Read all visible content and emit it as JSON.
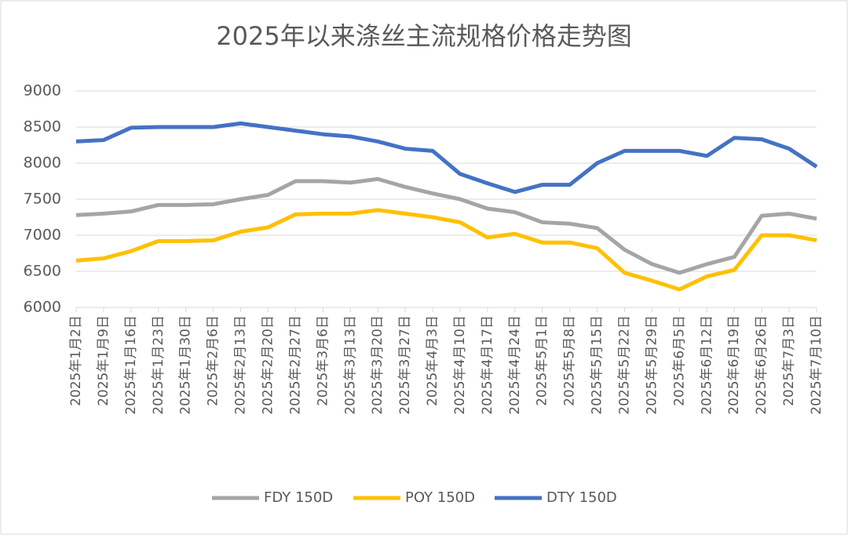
{
  "chart_data": {
    "type": "line",
    "title": "2025年以来涤丝主流规格价格走势图",
    "categories": [
      "2025年1月2日",
      "2025年1月9日",
      "2025年1月16日",
      "2025年1月23日",
      "2025年1月30日",
      "2025年2月6日",
      "2025年2月13日",
      "2025年2月20日",
      "2025年2月27日",
      "2025年3月6日",
      "2025年3月13日",
      "2025年3月20日",
      "2025年3月27日",
      "2025年4月3日",
      "2025年4月10日",
      "2025年4月17日",
      "2025年4月24日",
      "2025年5月1日",
      "2025年5月8日",
      "2025年5月15日",
      "2025年5月22日",
      "2025年5月29日",
      "2025年6月5日",
      "2025年6月12日",
      "2025年6月19日",
      "2025年6月26日",
      "2025年7月3日",
      "2025年7月10日"
    ],
    "series": [
      {
        "name": "FDY 150D",
        "color": "#a5a5a5",
        "values": [
          7280,
          7300,
          7330,
          7420,
          7420,
          7430,
          7500,
          7560,
          7750,
          7750,
          7730,
          7780,
          7670,
          7580,
          7500,
          7370,
          7320,
          7180,
          7160,
          7100,
          6800,
          6600,
          6480,
          6600,
          6700,
          7270,
          7300,
          7230
        ]
      },
      {
        "name": "POY 150D",
        "color": "#ffc000",
        "values": [
          6650,
          6680,
          6780,
          6920,
          6920,
          6930,
          7050,
          7110,
          7290,
          7300,
          7300,
          7350,
          7300,
          7250,
          7180,
          6970,
          7020,
          6900,
          6900,
          6820,
          6480,
          6370,
          6250,
          6430,
          6520,
          7000,
          7000,
          6930
        ]
      },
      {
        "name": "DTY 150D",
        "color": "#4472c4",
        "values": [
          8300,
          8320,
          8490,
          8500,
          8500,
          8500,
          8550,
          8500,
          8450,
          8400,
          8370,
          8300,
          8200,
          8170,
          7850,
          7720,
          7600,
          7700,
          7700,
          8000,
          8170,
          8170,
          8170,
          8100,
          8350,
          8330,
          8200,
          7950
        ]
      }
    ],
    "ylim": [
      6000,
      9000
    ],
    "yticks": [
      6000,
      6500,
      7000,
      7500,
      8000,
      8500,
      9000
    ],
    "grid": true,
    "legend": "bottom"
  }
}
